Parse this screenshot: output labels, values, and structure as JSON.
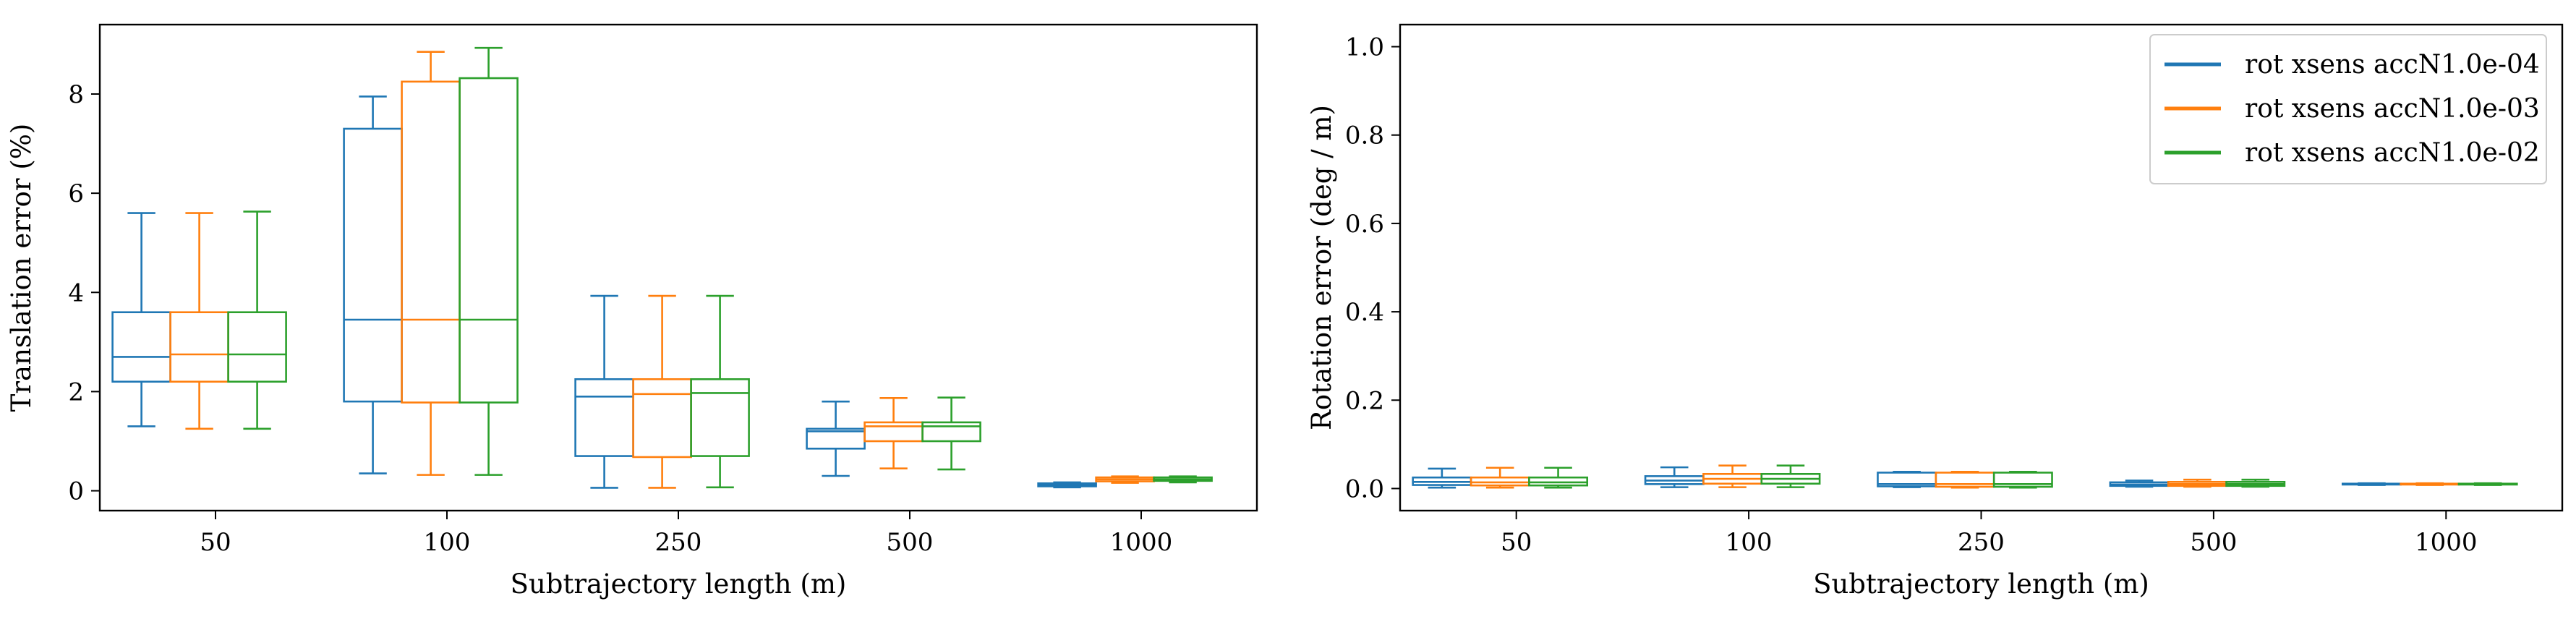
{
  "legend": [
    {
      "label": "rot xsens accN1.0e-04",
      "color": "#1f77b4"
    },
    {
      "label": "rot xsens accN1.0e-03",
      "color": "#ff7f0e"
    },
    {
      "label": "rot xsens accN1.0e-02",
      "color": "#2ca02c"
    }
  ],
  "chart_data": [
    {
      "type": "box",
      "title": "",
      "xlabel": "Subtrajectory length (m)",
      "ylabel": "Translation error (%)",
      "categories": [
        "50",
        "100",
        "250",
        "500",
        "1000"
      ],
      "ylim": [
        -0.4,
        9.4
      ],
      "yticks": [
        0,
        2,
        4,
        6,
        8
      ],
      "series": [
        {
          "name": "rot xsens accN1.0e-04",
          "color": "#1f77b4",
          "boxes": [
            {
              "whislo": 1.3,
              "q1": 2.2,
              "med": 2.7,
              "q3": 3.6,
              "whishi": 5.6
            },
            {
              "whislo": 0.35,
              "q1": 1.8,
              "med": 3.45,
              "q3": 7.3,
              "whishi": 7.95
            },
            {
              "whislo": 0.06,
              "q1": 0.7,
              "med": 1.9,
              "q3": 2.25,
              "whishi": 3.93
            },
            {
              "whislo": 0.3,
              "q1": 0.85,
              "med": 1.2,
              "q3": 1.25,
              "whishi": 1.8
            },
            {
              "whislo": 0.07,
              "q1": 0.09,
              "med": 0.12,
              "q3": 0.15,
              "whishi": 0.17
            }
          ]
        },
        {
          "name": "rot xsens accN1.0e-03",
          "color": "#ff7f0e",
          "boxes": [
            {
              "whislo": 1.25,
              "q1": 2.2,
              "med": 2.75,
              "q3": 3.6,
              "whishi": 5.6
            },
            {
              "whislo": 0.32,
              "q1": 1.78,
              "med": 3.45,
              "q3": 8.25,
              "whishi": 8.85
            },
            {
              "whislo": 0.06,
              "q1": 0.68,
              "med": 1.95,
              "q3": 2.25,
              "whishi": 3.93
            },
            {
              "whislo": 0.45,
              "q1": 1.0,
              "med": 1.3,
              "q3": 1.38,
              "whishi": 1.87
            },
            {
              "whislo": 0.16,
              "q1": 0.19,
              "med": 0.23,
              "q3": 0.27,
              "whishi": 0.29
            }
          ]
        },
        {
          "name": "rot xsens accN1.0e-02",
          "color": "#2ca02c",
          "boxes": [
            {
              "whislo": 1.25,
              "q1": 2.2,
              "med": 2.75,
              "q3": 3.6,
              "whishi": 5.63
            },
            {
              "whislo": 0.32,
              "q1": 1.78,
              "med": 3.45,
              "q3": 8.32,
              "whishi": 8.93
            },
            {
              "whislo": 0.07,
              "q1": 0.7,
              "med": 1.97,
              "q3": 2.25,
              "whishi": 3.93
            },
            {
              "whislo": 0.43,
              "q1": 1.0,
              "med": 1.3,
              "q3": 1.38,
              "whishi": 1.88
            },
            {
              "whislo": 0.17,
              "q1": 0.2,
              "med": 0.23,
              "q3": 0.27,
              "whishi": 0.29
            }
          ]
        }
      ]
    },
    {
      "type": "box",
      "title": "",
      "xlabel": "Subtrajectory length (m)",
      "ylabel": "Rotation error (deg / m)",
      "categories": [
        "50",
        "100",
        "250",
        "500",
        "1000"
      ],
      "ylim": [
        -0.05,
        1.05
      ],
      "yticks": [
        0.0,
        0.2,
        0.4,
        0.6,
        0.8,
        1.0
      ],
      "legend_position": "upper right",
      "series": [
        {
          "name": "rot xsens accN1.0e-04",
          "color": "#1f77b4",
          "boxes": [
            {
              "whislo": 0.002,
              "q1": 0.008,
              "med": 0.015,
              "q3": 0.025,
              "whishi": 0.045
            },
            {
              "whislo": 0.003,
              "q1": 0.01,
              "med": 0.018,
              "q3": 0.028,
              "whishi": 0.048
            },
            {
              "whislo": 0.003,
              "q1": 0.005,
              "med": 0.01,
              "q3": 0.036,
              "whishi": 0.038
            },
            {
              "whislo": 0.004,
              "q1": 0.006,
              "med": 0.009,
              "q3": 0.014,
              "whishi": 0.018
            },
            {
              "whislo": 0.008,
              "q1": 0.009,
              "med": 0.01,
              "q3": 0.011,
              "whishi": 0.012
            }
          ]
        },
        {
          "name": "rot xsens accN1.0e-03",
          "color": "#ff7f0e",
          "boxes": [
            {
              "whislo": 0.002,
              "q1": 0.007,
              "med": 0.014,
              "q3": 0.025,
              "whishi": 0.047
            },
            {
              "whislo": 0.003,
              "q1": 0.011,
              "med": 0.022,
              "q3": 0.033,
              "whishi": 0.052
            },
            {
              "whislo": 0.002,
              "q1": 0.004,
              "med": 0.01,
              "q3": 0.036,
              "whishi": 0.038
            },
            {
              "whislo": 0.004,
              "q1": 0.006,
              "med": 0.01,
              "q3": 0.015,
              "whishi": 0.02
            },
            {
              "whislo": 0.008,
              "q1": 0.009,
              "med": 0.01,
              "q3": 0.011,
              "whishi": 0.012
            }
          ]
        },
        {
          "name": "rot xsens accN1.0e-02",
          "color": "#2ca02c",
          "boxes": [
            {
              "whislo": 0.002,
              "q1": 0.007,
              "med": 0.014,
              "q3": 0.025,
              "whishi": 0.047
            },
            {
              "whislo": 0.003,
              "q1": 0.011,
              "med": 0.022,
              "q3": 0.033,
              "whishi": 0.052
            },
            {
              "whislo": 0.002,
              "q1": 0.004,
              "med": 0.01,
              "q3": 0.036,
              "whishi": 0.038
            },
            {
              "whislo": 0.004,
              "q1": 0.006,
              "med": 0.01,
              "q3": 0.015,
              "whishi": 0.02
            },
            {
              "whislo": 0.008,
              "q1": 0.009,
              "med": 0.01,
              "q3": 0.011,
              "whishi": 0.012
            }
          ]
        }
      ]
    }
  ]
}
